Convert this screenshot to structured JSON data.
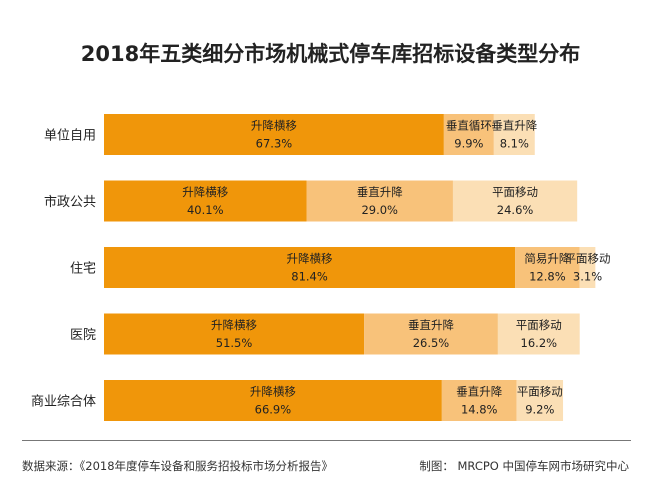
{
  "title": "2018年五类细分市场机械式停车库招标设备类型分布",
  "source": "数据来源：《2018年度停车设备和服务招投标市场分析报告》",
  "credit": "制图： MRCPO 中国停车网市场研究中心",
  "colors": {
    "primary": "#f0960a",
    "secondary": "#f8c27a",
    "tertiary": "#fbdfb5",
    "text": "#222222"
  },
  "chart_data": {
    "type": "bar",
    "stacked": true,
    "orientation": "horizontal",
    "percent": true,
    "grid": false,
    "categories": [
      "单位自用",
      "市政公共",
      "住宅",
      "医院",
      "商业综合体"
    ],
    "bars": [
      {
        "category": "单位自用",
        "segments": [
          {
            "label": "升降横移",
            "value": 67.3,
            "display": "67.3%"
          },
          {
            "label": "垂直循环",
            "value": 9.9,
            "display": "9.9%"
          },
          {
            "label": "垂直升降",
            "value": 8.1,
            "display": "8.1%"
          }
        ]
      },
      {
        "category": "市政公共",
        "segments": [
          {
            "label": "升降横移",
            "value": 40.1,
            "display": "40.1%"
          },
          {
            "label": "垂直升降",
            "value": 29.0,
            "display": "29.0%"
          },
          {
            "label": "平面移动",
            "value": 24.6,
            "display": "24.6%"
          }
        ]
      },
      {
        "category": "住宅",
        "segments": [
          {
            "label": "升降横移",
            "value": 81.4,
            "display": "81.4%"
          },
          {
            "label": "简易升降",
            "value": 12.8,
            "display": "12.8%"
          },
          {
            "label": "平面移动",
            "value": 3.1,
            "display": "3.1%"
          }
        ]
      },
      {
        "category": "医院",
        "segments": [
          {
            "label": "升降横移",
            "value": 51.5,
            "display": "51.5%"
          },
          {
            "label": "垂直升降",
            "value": 26.5,
            "display": "26.5%"
          },
          {
            "label": "平面移动",
            "value": 16.2,
            "display": "16.2%"
          }
        ]
      },
      {
        "category": "商业综合体",
        "segments": [
          {
            "label": "升降横移",
            "value": 66.9,
            "display": "66.9%"
          },
          {
            "label": "垂直升降",
            "value": 14.8,
            "display": "14.8%"
          },
          {
            "label": "平面移动",
            "value": 9.2,
            "display": "9.2%"
          }
        ]
      }
    ]
  }
}
